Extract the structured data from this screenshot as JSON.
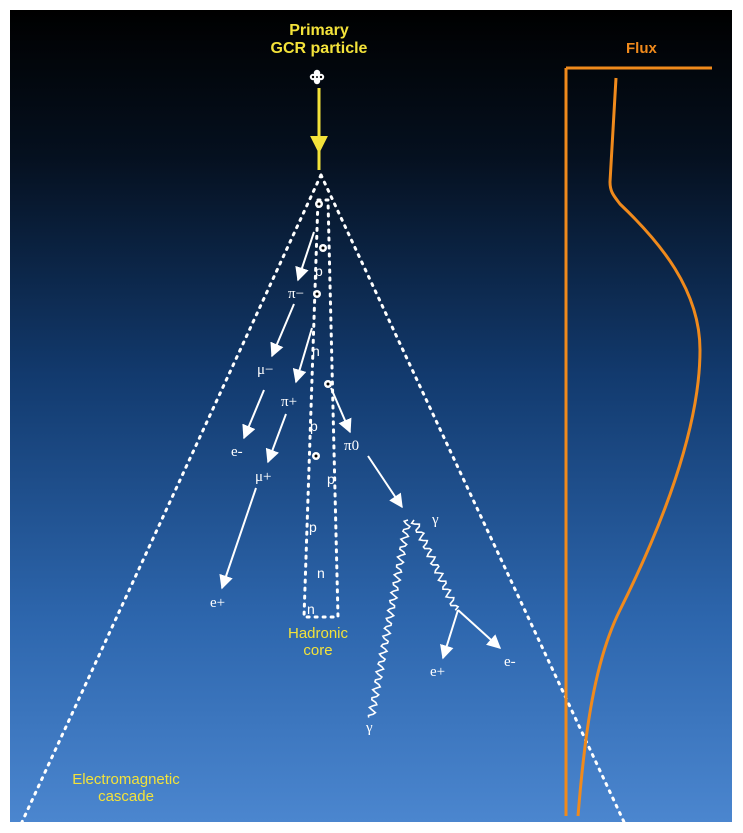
{
  "labels": {
    "primary_line1": "Primary",
    "primary_line2": "GCR particle",
    "flux": "Flux",
    "hadronic_line1": "Hadronic",
    "hadronic_line2": "core",
    "em_line1": "Electromagnetic",
    "em_line2": "cascade"
  },
  "particles": {
    "pi_minus": "π−",
    "mu_minus": "μ−",
    "pi_plus": "π+",
    "e_minus_left": "e-",
    "mu_plus": "μ+",
    "e_plus_left": "e+",
    "pi_zero": "π0",
    "gamma_top": "γ",
    "gamma_bottom": "γ",
    "e_plus_right": "e+",
    "e_minus_right": "e-"
  },
  "core_particles": [
    "p",
    "n",
    "p",
    "p",
    "p",
    "n",
    "n"
  ],
  "colors": {
    "background_top": "#000000",
    "background_bottom": "#4b86cf",
    "label_yellow": "#f3e23a",
    "flux_orange": "#f08a1c",
    "arrow_white": "#ffffff"
  }
}
